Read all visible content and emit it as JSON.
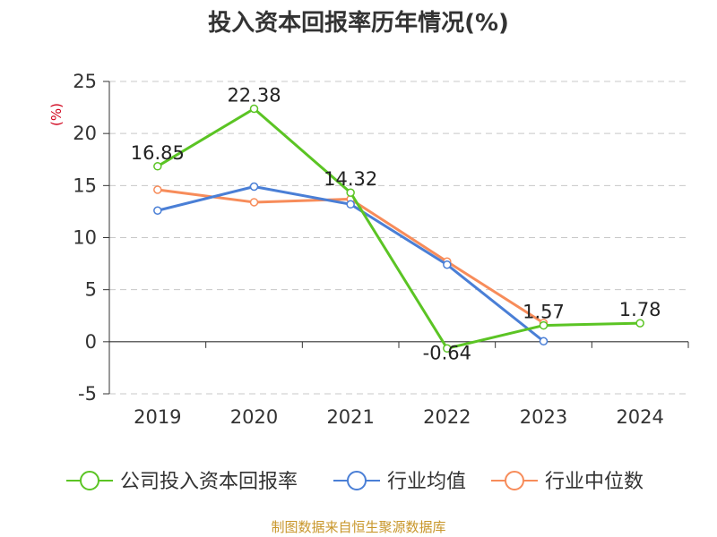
{
  "chart_data": {
    "type": "line",
    "title": "投入资本回报率历年情况(%)",
    "ylabel": "(%)",
    "xlabel": "",
    "categories": [
      "2019",
      "2020",
      "2021",
      "2022",
      "2023",
      "2024"
    ],
    "ylim": [
      -5,
      25
    ],
    "yticks": [
      25,
      20,
      15,
      10,
      5,
      0,
      -5
    ],
    "grid": true,
    "legend_position": "bottom",
    "series": [
      {
        "name": "公司投入资本回报率",
        "color": "#5bc424",
        "values": [
          16.85,
          22.38,
          14.32,
          -0.64,
          1.57,
          1.78
        ],
        "labels": [
          "16.85",
          "22.38",
          "14.32",
          "-0.64",
          "1.57",
          "1.78"
        ]
      },
      {
        "name": "行业均值",
        "color": "#4a7fd6",
        "values": [
          12.6,
          14.9,
          13.2,
          7.4,
          0.05,
          null
        ]
      },
      {
        "name": "行业中位数",
        "color": "#f78c5a",
        "values": [
          14.6,
          13.4,
          13.7,
          7.7,
          1.8,
          null
        ]
      }
    ]
  },
  "source": "制图数据来自恒生聚源数据库"
}
